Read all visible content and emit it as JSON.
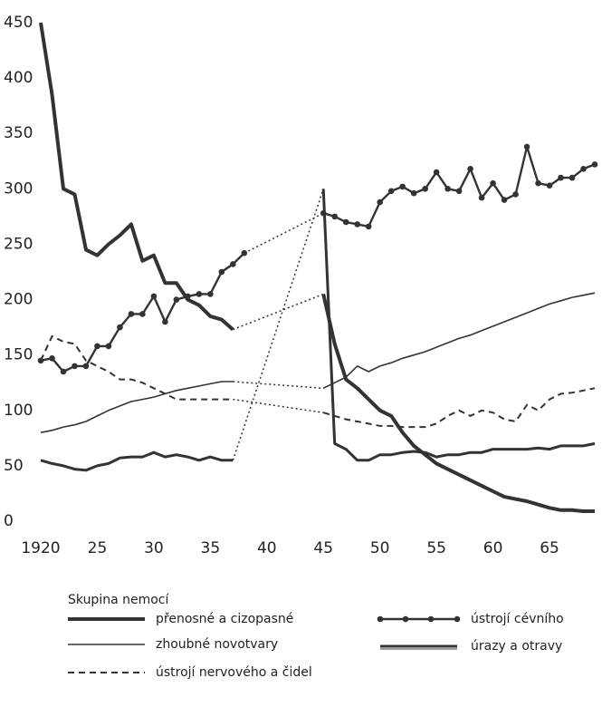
{
  "chart_data": {
    "type": "line",
    "legend_title": "Skupina nemocí",
    "x": [
      1920,
      1921,
      1922,
      1923,
      1924,
      1925,
      1926,
      1927,
      1928,
      1929,
      1930,
      1931,
      1932,
      1933,
      1934,
      1935,
      1936,
      1937,
      1938,
      1939,
      1940,
      1941,
      1942,
      1943,
      1944,
      1945,
      1946,
      1947,
      1948,
      1949,
      1950,
      1951,
      1952,
      1953,
      1954,
      1955,
      1956,
      1957,
      1958,
      1959,
      1960,
      1961,
      1962,
      1963,
      1964,
      1965,
      1966,
      1967,
      1968,
      1969
    ],
    "xlim": [
      1920,
      1969
    ],
    "xticks": [
      1920,
      {
        "value": 1925,
        "label": "25"
      },
      {
        "value": 1930,
        "label": "30"
      },
      {
        "value": 1935,
        "label": "35"
      },
      {
        "value": 1940,
        "label": "40"
      },
      {
        "value": 1945,
        "label": "45"
      },
      {
        "value": 1950,
        "label": "50"
      },
      {
        "value": 1955,
        "label": "55"
      },
      {
        "value": 1960,
        "label": "60"
      },
      {
        "value": 1965,
        "label": "65"
      }
    ],
    "ylim": [
      0,
      450
    ],
    "yticks": [
      0,
      50,
      100,
      150,
      200,
      250,
      300,
      350,
      400,
      450
    ],
    "series": [
      {
        "name": "přenosné a cizopasné",
        "color": "#333333",
        "style": "thick",
        "values": [
          450,
          385,
          300,
          295,
          245,
          240,
          250,
          258,
          268,
          235,
          240,
          215,
          215,
          200,
          195,
          185,
          182,
          173,
          null,
          null,
          null,
          null,
          null,
          null,
          null,
          205,
          160,
          128,
          120,
          110,
          100,
          95,
          80,
          68,
          60,
          52,
          47,
          42,
          37,
          32,
          27,
          22,
          20,
          18,
          15,
          12,
          10,
          10,
          9,
          9
        ]
      },
      {
        "name": "zhoubné novotvary",
        "color": "#333333",
        "style": "thin",
        "values": [
          80,
          82,
          85,
          87,
          90,
          95,
          100,
          104,
          108,
          110,
          112,
          115,
          118,
          120,
          122,
          124,
          126,
          126,
          null,
          null,
          null,
          null,
          null,
          null,
          null,
          120,
          125,
          130,
          140,
          135,
          140,
          143,
          147,
          150,
          153,
          157,
          161,
          165,
          168,
          172,
          176,
          180,
          184,
          188,
          192,
          196,
          199,
          202,
          204,
          206
        ]
      },
      {
        "name": "ústrojí nervového a čidel",
        "color": "#333333",
        "style": "dashed",
        "values": [
          145,
          167,
          162,
          160,
          145,
          140,
          135,
          128,
          128,
          125,
          120,
          115,
          110,
          110,
          110,
          110,
          110,
          110,
          null,
          null,
          null,
          null,
          null,
          null,
          null,
          98,
          95,
          92,
          90,
          88,
          86,
          86,
          85,
          85,
          85,
          88,
          95,
          100,
          95,
          100,
          98,
          92,
          90,
          105,
          100,
          110,
          115,
          116,
          118,
          120
        ]
      },
      {
        "name": "ústrojí cévního",
        "color": "#333333",
        "style": "dots",
        "values": [
          145,
          147,
          135,
          140,
          140,
          158,
          158,
          175,
          187,
          187,
          203,
          180,
          200,
          203,
          205,
          205,
          225,
          232,
          242,
          null,
          null,
          null,
          null,
          null,
          null,
          278,
          275,
          270,
          268,
          266,
          288,
          298,
          302,
          296,
          300,
          315,
          300,
          298,
          318,
          292,
          305,
          290,
          295,
          338,
          305,
          303,
          310,
          310,
          318,
          322
        ]
      },
      {
        "name": "úrazy a otravy",
        "color": "#333333",
        "style": "double",
        "values": [
          55,
          52,
          50,
          47,
          46,
          50,
          52,
          57,
          58,
          58,
          62,
          58,
          60,
          58,
          55,
          58,
          55,
          55,
          null,
          null,
          null,
          null,
          null,
          null,
          null,
          300,
          70,
          65,
          55,
          55,
          60,
          60,
          62,
          63,
          62,
          58,
          60,
          60,
          62,
          62,
          65,
          65,
          65,
          65,
          66,
          65,
          68,
          68,
          68,
          70
        ]
      }
    ]
  }
}
